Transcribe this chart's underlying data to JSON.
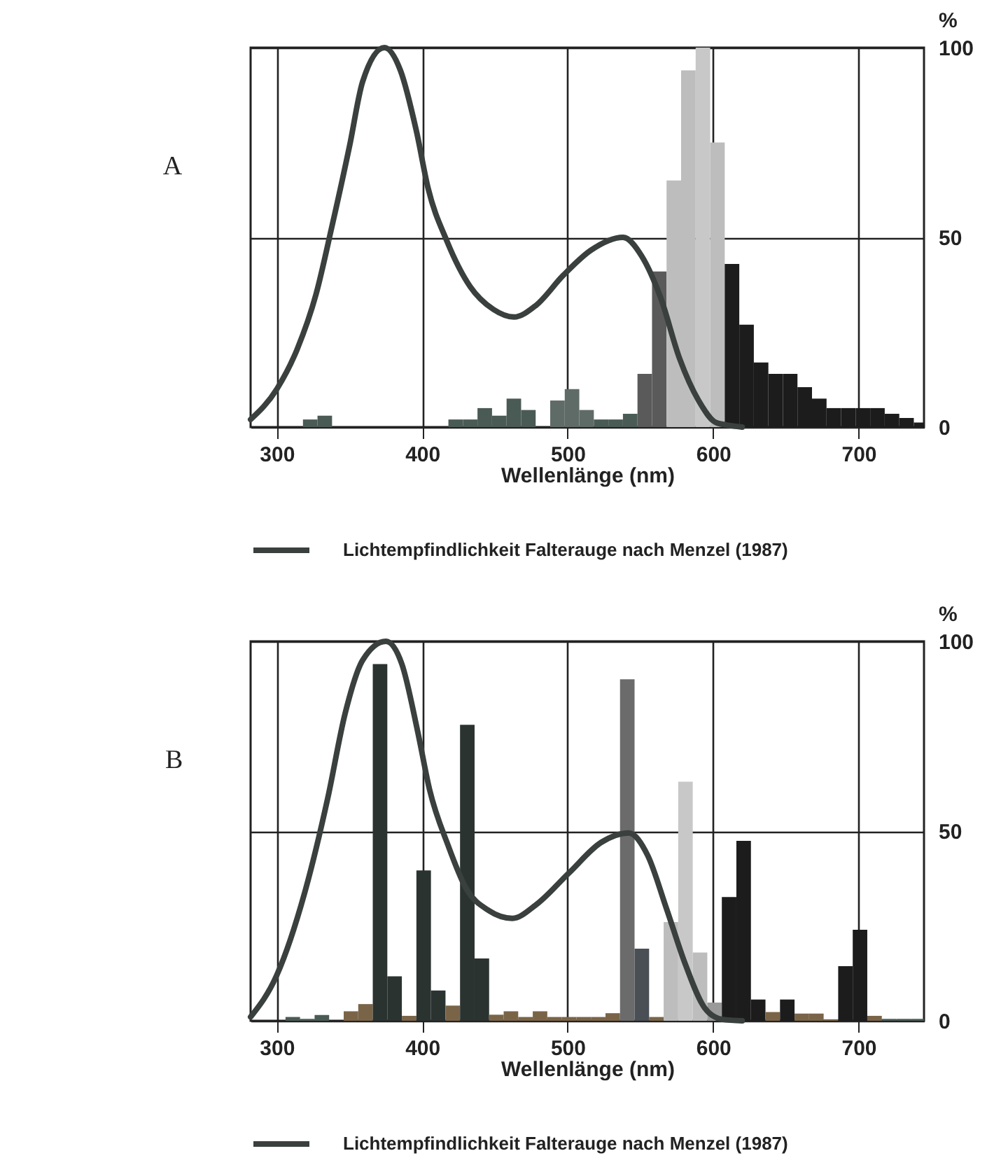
{
  "chart_data": [
    {
      "type": "histogram",
      "title": "A",
      "xlabel": "Wellenlänge (nm)",
      "ylabel": "%",
      "bins": [
        318,
        328,
        338,
        418,
        428,
        438,
        448,
        458,
        468,
        478,
        488,
        498,
        508,
        518,
        528,
        538,
        548,
        558,
        568,
        578,
        588,
        598,
        608,
        618,
        628,
        638,
        648,
        658,
        668,
        678,
        688,
        698,
        708,
        718,
        728,
        738,
        745
      ],
      "values": [
        2,
        3,
        0,
        2,
        2,
        5,
        3,
        7.5,
        4.5,
        0,
        7,
        10,
        4.5,
        2,
        2,
        3.5,
        14,
        41,
        65,
        94,
        100,
        75,
        43,
        27,
        17,
        14,
        14,
        10.5,
        7.5,
        5,
        5,
        5,
        5,
        3.5,
        2.4,
        1.2
      ],
      "colors": [
        "#4a5a55",
        "#4a5a55",
        "#4a5a55",
        "#4a5a55",
        "#4a5a55",
        "#4a5a55",
        "#4a5a55",
        "#4a5a55",
        "#4a5a55",
        "#4a5a55",
        "#5f6b66",
        "#5f6b66",
        "#5f6b66",
        "#4a5a55",
        "#4a5a55",
        "#4a5a55",
        "#5a5a5a",
        "#5a5a5a",
        "#bdbdbd",
        "#bdbdbd",
        "#c8c8c8",
        "#bdbdbd",
        "#1c1c1c",
        "#1c1c1c",
        "#1c1c1c",
        "#1c1c1c",
        "#1c1c1c",
        "#1c1c1c",
        "#1c1c1c",
        "#1c1c1c",
        "#1c1c1c",
        "#1c1c1c",
        "#1c1c1c",
        "#1c1c1c",
        "#1c1c1c",
        "#1c1c1c"
      ],
      "series": [
        {
          "type": "line",
          "name": "Lichtempfindlichkeit Falterauge nach Menzel (1987)",
          "color": "#3a403d",
          "x": [
            282,
            300,
            314,
            327,
            338,
            350,
            359,
            374,
            385,
            396,
            404,
            417,
            433,
            449,
            463,
            478,
            497,
            516,
            538,
            551,
            564,
            577,
            590,
            602,
            612,
            620
          ],
          "values": [
            2,
            10,
            20.5,
            35,
            53,
            74,
            91,
            100,
            94,
            78,
            63,
            49,
            37,
            31,
            29,
            32,
            40,
            46.6,
            50,
            45,
            34,
            18,
            7,
            1.2,
            0.4,
            0
          ]
        }
      ],
      "xlim": [
        282,
        745
      ],
      "xticks": [
        300,
        400,
        500,
        600,
        700
      ],
      "ylim": [
        0,
        100
      ],
      "yticks": [
        0,
        50,
        100
      ],
      "grid": true,
      "legend": "bottom"
    },
    {
      "type": "histogram",
      "title": "B",
      "xlabel": "Wellenlänge (nm)",
      "ylabel": "%",
      "bins": [
        306,
        316,
        326,
        336,
        346,
        356,
        366,
        376,
        386,
        396,
        406,
        416,
        426,
        436,
        446,
        456,
        466,
        476,
        486,
        496,
        506,
        516,
        526,
        536,
        546,
        556,
        566,
        576,
        586,
        596,
        606,
        616,
        626,
        636,
        646,
        656,
        666,
        676,
        686,
        696,
        706,
        716,
        726,
        736,
        745
      ],
      "values": [
        1,
        0.5,
        1.5,
        0,
        2.5,
        4.4,
        94,
        11.7,
        1.3,
        39.6,
        8,
        4,
        78,
        16.4,
        1.6,
        2.5,
        1,
        2.5,
        1,
        1,
        1,
        1,
        2,
        90,
        19,
        1,
        26,
        63,
        18,
        4.8,
        32.6,
        47.4,
        5.6,
        2.3,
        5.6,
        1.9,
        1.9,
        0.4,
        14.4,
        24,
        1.3,
        0.5,
        0.5,
        0.5
      ],
      "colors": [
        "#4a5a55",
        "#4a5a55",
        "#4a5a55",
        "#4a5a55",
        "#7a6448",
        "#7a6448",
        "#2a3330",
        "#2a3330",
        "#7a6448",
        "#2a3330",
        "#2a3330",
        "#7a6448",
        "#2a3330",
        "#2a3330",
        "#7a6448",
        "#7a6448",
        "#7a6448",
        "#7a6448",
        "#7a6448",
        "#7a6448",
        "#7a6448",
        "#7a6448",
        "#7a6448",
        "#6b6b6b",
        "#4a4f55",
        "#7a6448",
        "#bdbdbd",
        "#c8c8c8",
        "#bdbdbd",
        "#9a9a9a",
        "#1c1c1c",
        "#1c1c1c",
        "#1c1c1c",
        "#7a6448",
        "#1c1c1c",
        "#7a6448",
        "#7a6448",
        "#7a6448",
        "#1c1c1c",
        "#1c1c1c",
        "#7a6448",
        "#4a5a55",
        "#4a5a55",
        "#4a5a55"
      ],
      "series": [
        {
          "type": "line",
          "name": "Lichtempfindlichkeit Falterauge nach Menzel (1987)",
          "color": "#3a403d",
          "x": [
            282,
            300,
            319,
            335,
            347,
            359,
            375,
            386,
            397,
            405,
            418,
            430,
            446,
            462,
            478,
            501,
            523,
            542,
            555,
            568,
            581,
            594,
            606,
            620
          ],
          "values": [
            1,
            12,
            33.5,
            58.6,
            81,
            95,
            100,
            94,
            76,
            61,
            46,
            35,
            29,
            27,
            30.5,
            39,
            47,
            49.5,
            43.6,
            29.5,
            14.8,
            3.5,
            0.4,
            0
          ]
        }
      ],
      "xlim": [
        282,
        745
      ],
      "xticks": [
        300,
        400,
        500,
        600,
        700
      ],
      "ylim": [
        0,
        100
      ],
      "yticks": [
        0,
        50,
        100
      ],
      "grid": true,
      "legend": "bottom"
    }
  ]
}
